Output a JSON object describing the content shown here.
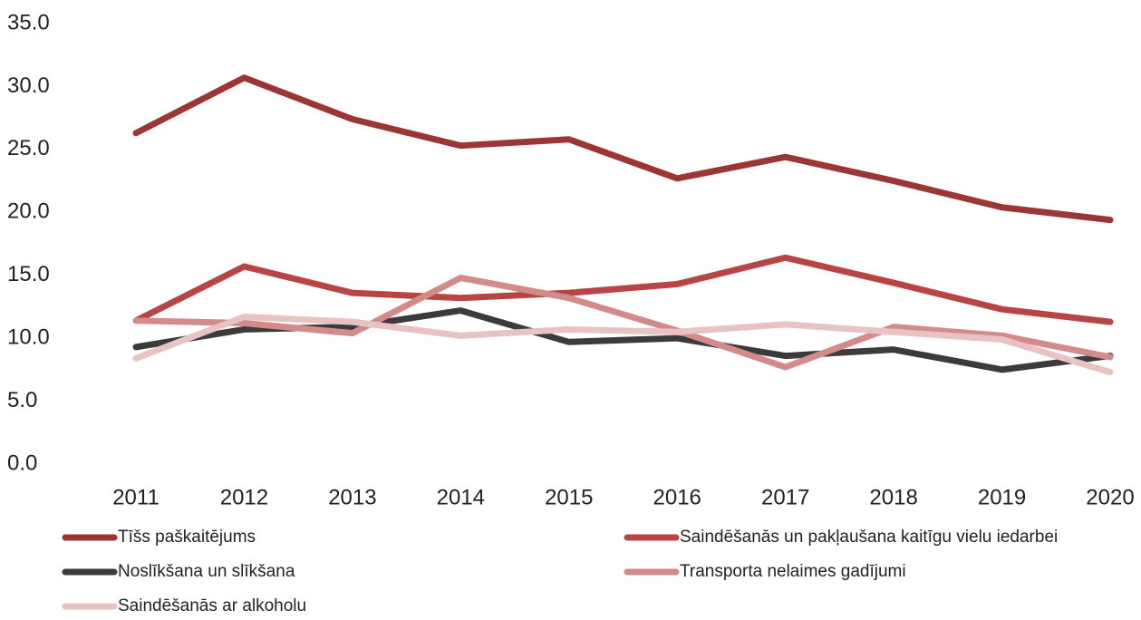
{
  "chart_data": {
    "type": "line",
    "categories": [
      "2011",
      "2012",
      "2013",
      "2014",
      "2015",
      "2016",
      "2017",
      "2018",
      "2019",
      "2020"
    ],
    "series": [
      {
        "name": "Tīšs paškaitējums",
        "color": "#9b3633",
        "values": [
          26.3,
          30.7,
          27.4,
          25.3,
          25.8,
          22.7,
          24.4,
          22.5,
          20.4,
          19.4
        ]
      },
      {
        "name": "Saindēšanās un pakļaušana kaitīgu vielu iedarbei",
        "color": "#b84443",
        "values": [
          11.4,
          15.7,
          13.6,
          13.2,
          13.6,
          14.3,
          16.4,
          14.4,
          12.3,
          11.3
        ]
      },
      {
        "name": "Noslīkšana un slīkšana",
        "color": "#3b3b3b",
        "values": [
          9.3,
          10.7,
          10.9,
          12.2,
          9.7,
          10.0,
          8.6,
          9.1,
          7.5,
          8.6
        ]
      },
      {
        "name": "Transporta nelaimes gadījumi",
        "color": "#d38b89",
        "values": [
          11.4,
          11.2,
          10.4,
          14.8,
          13.2,
          10.6,
          7.7,
          10.9,
          10.2,
          8.5
        ]
      },
      {
        "name": "Saindēšanās ar alkoholu",
        "color": "#e8c3c2",
        "values": [
          8.4,
          11.7,
          11.3,
          10.2,
          10.7,
          10.5,
          11.1,
          10.5,
          9.9,
          7.3
        ]
      }
    ],
    "ylim": [
      0,
      35
    ],
    "yticks": [
      {
        "value": 0,
        "label": "0.0"
      },
      {
        "value": 5,
        "label": "5.0"
      },
      {
        "value": 10,
        "label": "10.0"
      },
      {
        "value": 15,
        "label": "15.0"
      },
      {
        "value": 20,
        "label": "20.0"
      },
      {
        "value": 25,
        "label": "25.0"
      },
      {
        "value": 30,
        "label": "30.0"
      },
      {
        "value": 35,
        "label": "35.0"
      }
    ],
    "grid": false,
    "legend": "bottom"
  }
}
